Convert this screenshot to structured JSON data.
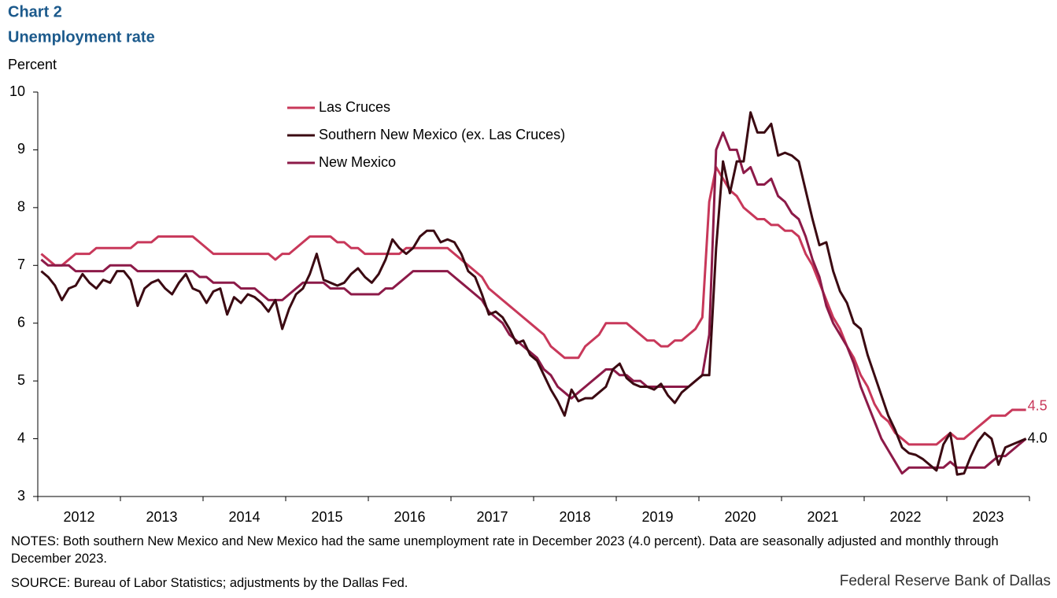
{
  "chart_data": {
    "type": "line",
    "title": "Chart 2",
    "subtitle": "Unemployment rate",
    "y_label": "Percent",
    "notes": "NOTES: Both southern New Mexico and New Mexico had the same unemployment rate in December 2023 (4.0 percent). Data are seasonally adjusted and monthly through December 2023.",
    "source": "SOURCE: Bureau of Labor Statistics; adjustments by the Dallas Fed.",
    "credit": "Federal Reserve Bank of Dallas",
    "categories": [
      null,
      null,
      null,
      null,
      null,
      null,
      "2012",
      null,
      null,
      null,
      null,
      null,
      null,
      null,
      null,
      null,
      null,
      null,
      "2013",
      null,
      null,
      null,
      null,
      null,
      null,
      null,
      null,
      null,
      null,
      null,
      "2014",
      null,
      null,
      null,
      null,
      null,
      null,
      null,
      null,
      null,
      null,
      null,
      "2015",
      null,
      null,
      null,
      null,
      null,
      null,
      null,
      null,
      null,
      null,
      null,
      "2016",
      null,
      null,
      null,
      null,
      null,
      null,
      null,
      null,
      null,
      null,
      null,
      "2017",
      null,
      null,
      null,
      null,
      null,
      null,
      null,
      null,
      null,
      null,
      null,
      "2018",
      null,
      null,
      null,
      null,
      null,
      null,
      null,
      null,
      null,
      null,
      null,
      "2019",
      null,
      null,
      null,
      null,
      null,
      null,
      null,
      null,
      null,
      null,
      null,
      "2020",
      null,
      null,
      null,
      null,
      null,
      null,
      null,
      null,
      null,
      null,
      null,
      "2021",
      null,
      null,
      null,
      null,
      null,
      null,
      null,
      null,
      null,
      null,
      null,
      "2022",
      null,
      null,
      null,
      null,
      null,
      null,
      null,
      null,
      null,
      null,
      null,
      "2023",
      null,
      null,
      null,
      null,
      null
    ],
    "ylim": [
      3,
      10
    ],
    "yticks": [
      3,
      4,
      5,
      6,
      7,
      8,
      9,
      10
    ],
    "grid": false,
    "series": [
      {
        "name": "Las Cruces",
        "color": "#c8385a",
        "values": [
          7.2,
          7.1,
          7.0,
          7.0,
          7.1,
          7.2,
          7.2,
          7.2,
          7.3,
          7.3,
          7.3,
          7.3,
          7.3,
          7.3,
          7.4,
          7.4,
          7.4,
          7.5,
          7.5,
          7.5,
          7.5,
          7.5,
          7.5,
          7.4,
          7.3,
          7.2,
          7.2,
          7.2,
          7.2,
          7.2,
          7.2,
          7.2,
          7.2,
          7.2,
          7.1,
          7.2,
          7.2,
          7.3,
          7.4,
          7.5,
          7.5,
          7.5,
          7.5,
          7.4,
          7.4,
          7.3,
          7.3,
          7.2,
          7.2,
          7.2,
          7.2,
          7.2,
          7.2,
          7.3,
          7.3,
          7.3,
          7.3,
          7.3,
          7.3,
          7.3,
          7.2,
          7.1,
          7.0,
          6.9,
          6.8,
          6.6,
          6.5,
          6.4,
          6.3,
          6.2,
          6.1,
          6.0,
          5.9,
          5.8,
          5.6,
          5.5,
          5.4,
          5.4,
          5.4,
          5.6,
          5.7,
          5.8,
          6.0,
          6.0,
          6.0,
          6.0,
          5.9,
          5.8,
          5.7,
          5.7,
          5.6,
          5.6,
          5.7,
          5.7,
          5.8,
          5.9,
          6.1,
          8.1,
          8.7,
          8.5,
          8.3,
          8.2,
          8.0,
          7.9,
          7.8,
          7.8,
          7.7,
          7.7,
          7.6,
          7.6,
          7.5,
          7.2,
          7.0,
          6.7,
          6.4,
          6.1,
          5.9,
          5.6,
          5.4,
          5.1,
          4.9,
          4.6,
          4.4,
          4.3,
          4.1,
          4.0,
          3.9,
          3.9,
          3.9,
          3.9,
          3.9,
          4.0,
          4.1,
          4.0,
          4.0,
          4.1,
          4.2,
          4.3,
          4.4,
          4.4,
          4.4,
          4.5,
          4.5,
          4.5
        ]
      },
      {
        "name": "Southern New Mexico (ex. Las Cruces)",
        "color": "#3b0a12",
        "values": [
          6.9,
          6.8,
          6.65,
          6.4,
          6.6,
          6.65,
          6.85,
          6.7,
          6.6,
          6.75,
          6.7,
          6.9,
          6.9,
          6.75,
          6.3,
          6.6,
          6.7,
          6.75,
          6.6,
          6.5,
          6.7,
          6.85,
          6.6,
          6.55,
          6.35,
          6.55,
          6.6,
          6.15,
          6.45,
          6.35,
          6.5,
          6.45,
          6.35,
          6.2,
          6.4,
          5.9,
          6.25,
          6.5,
          6.6,
          6.85,
          7.2,
          6.75,
          6.7,
          6.65,
          6.7,
          6.85,
          6.95,
          6.8,
          6.7,
          6.85,
          7.1,
          7.45,
          7.3,
          7.2,
          7.3,
          7.5,
          7.6,
          7.6,
          7.4,
          7.45,
          7.4,
          7.2,
          6.9,
          6.8,
          6.5,
          6.15,
          6.2,
          6.1,
          5.9,
          5.65,
          5.7,
          5.45,
          5.35,
          5.1,
          4.85,
          4.65,
          4.4,
          4.85,
          4.65,
          4.7,
          4.7,
          4.8,
          4.9,
          5.2,
          5.3,
          5.05,
          4.95,
          4.9,
          4.9,
          4.85,
          4.95,
          4.75,
          4.62,
          4.8,
          4.9,
          5.0,
          5.1,
          5.1,
          7.3,
          8.8,
          8.25,
          8.8,
          8.8,
          9.65,
          9.3,
          9.3,
          9.45,
          8.9,
          8.95,
          8.9,
          8.8,
          8.3,
          7.8,
          7.35,
          7.4,
          6.9,
          6.55,
          6.35,
          6.0,
          5.9,
          5.45,
          5.1,
          4.75,
          4.4,
          4.15,
          3.85,
          3.75,
          3.72,
          3.65,
          3.55,
          3.45,
          3.9,
          4.1,
          3.38,
          3.4,
          3.7,
          3.95,
          4.1,
          4.0,
          3.55,
          3.85,
          3.9,
          3.95,
          4.0
        ],
        "value_labels": [
          null,
          null,
          null,
          null,
          null,
          null,
          null,
          null,
          null,
          null,
          null,
          null,
          null,
          null,
          null,
          null,
          null,
          null,
          null,
          null,
          null,
          null,
          null,
          null,
          null,
          null,
          null,
          null,
          null,
          null,
          null,
          null,
          null,
          null,
          null,
          null,
          null,
          null,
          null,
          null,
          null,
          null,
          null,
          null,
          null,
          null,
          null,
          null,
          null,
          null,
          null,
          null,
          null,
          null,
          null,
          null,
          null,
          null,
          null,
          null,
          null,
          null,
          null,
          null,
          null,
          null,
          null,
          null,
          null,
          null,
          null,
          null,
          null,
          null,
          null,
          null,
          null,
          null,
          null,
          null,
          null,
          null,
          null,
          null,
          null,
          null,
          null,
          null,
          null,
          null,
          null,
          null,
          null,
          null,
          null,
          null,
          null,
          null,
          null,
          null,
          null,
          null,
          null,
          null,
          null,
          null,
          null,
          null,
          null,
          null,
          null,
          null,
          null,
          null,
          null,
          null,
          null,
          null,
          null,
          null,
          null,
          null,
          null,
          null,
          null,
          null,
          null,
          null,
          null,
          null,
          null,
          null,
          null,
          null,
          null,
          null,
          null,
          null,
          null,
          null,
          null,
          null,
          null,
          "4.0"
        ]
      },
      {
        "name": "New Mexico",
        "color": "#8c1a48",
        "values": [
          7.1,
          7.0,
          7.0,
          7.0,
          7.0,
          6.9,
          6.9,
          6.9,
          6.9,
          6.9,
          7.0,
          7.0,
          7.0,
          7.0,
          6.9,
          6.9,
          6.9,
          6.9,
          6.9,
          6.9,
          6.9,
          6.9,
          6.9,
          6.8,
          6.8,
          6.7,
          6.7,
          6.7,
          6.7,
          6.6,
          6.6,
          6.6,
          6.5,
          6.4,
          6.4,
          6.4,
          6.5,
          6.6,
          6.7,
          6.7,
          6.7,
          6.7,
          6.6,
          6.6,
          6.6,
          6.5,
          6.5,
          6.5,
          6.5,
          6.5,
          6.6,
          6.6,
          6.7,
          6.8,
          6.9,
          6.9,
          6.9,
          6.9,
          6.9,
          6.9,
          6.8,
          6.7,
          6.6,
          6.5,
          6.4,
          6.2,
          6.1,
          6.0,
          5.8,
          5.7,
          5.6,
          5.5,
          5.4,
          5.2,
          5.1,
          4.9,
          4.8,
          4.7,
          4.8,
          4.9,
          5.0,
          5.1,
          5.2,
          5.2,
          5.1,
          5.1,
          5.0,
          5.0,
          4.9,
          4.9,
          4.9,
          4.9,
          4.9,
          4.9,
          4.9,
          5.0,
          5.1,
          5.8,
          9.0,
          9.3,
          9.0,
          9.0,
          8.6,
          8.7,
          8.4,
          8.4,
          8.5,
          8.2,
          8.1,
          7.9,
          7.8,
          7.5,
          7.1,
          6.8,
          6.3,
          6.0,
          5.8,
          5.6,
          5.3,
          4.9,
          4.6,
          4.3,
          4.0,
          3.8,
          3.6,
          3.4,
          3.5,
          3.5,
          3.5,
          3.5,
          3.5,
          3.5,
          3.6,
          3.5,
          3.5,
          3.5,
          3.5,
          3.5,
          3.6,
          3.7,
          3.7,
          3.8,
          3.9,
          4.0
        ]
      }
    ]
  }
}
